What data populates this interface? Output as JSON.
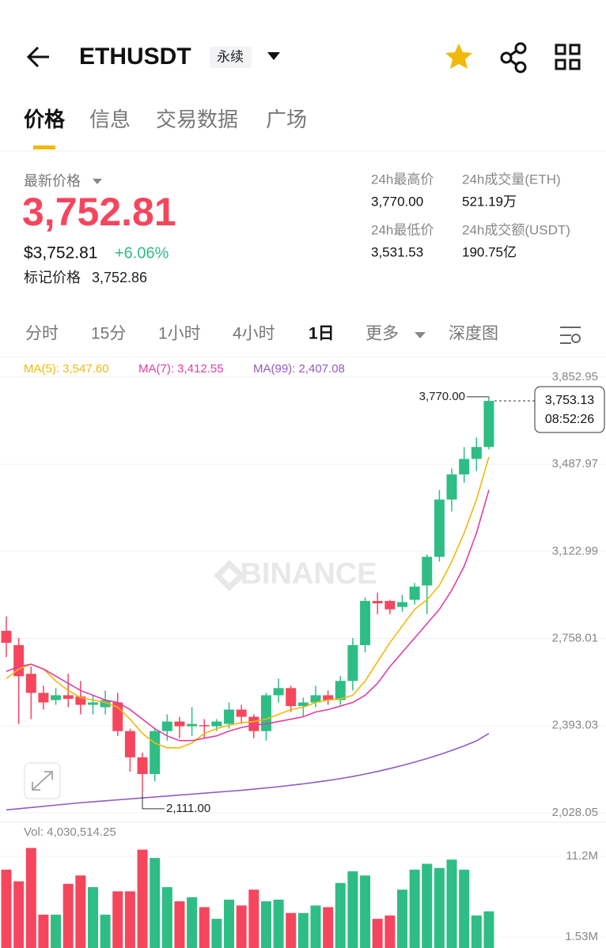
{
  "header": {
    "title": "ETHUSDT",
    "tag": "永续"
  },
  "tabs": [
    "价格",
    "信息",
    "交易数据",
    "广场"
  ],
  "price": {
    "label": "最新价格",
    "last": "3,752.81",
    "usd": "$3,752.81",
    "change": "+6.06%",
    "mark_label": "标记价格",
    "mark_value": "3,752.86"
  },
  "stats": [
    {
      "label": "24h最高价",
      "value": "3,770.00"
    },
    {
      "label": "24h成交量(ETH)",
      "value": "521.19万"
    },
    {
      "label": "24h最低价",
      "value": "3,531.53"
    },
    {
      "label": "24h成交额(USDT)",
      "value": "190.75亿"
    }
  ],
  "intervals": [
    "分时",
    "15分",
    "1小时",
    "4小时",
    "1日",
    "更多",
    "深度图"
  ],
  "chart_data": {
    "type": "candlestick",
    "watermark": "BINANCE",
    "ylim": [
      1988,
      3932
    ],
    "yticks": [
      {
        "value": 3852.95,
        "label": "3,852.95"
      },
      {
        "value": 3487.97,
        "label": "3,487.97"
      },
      {
        "value": 3122.99,
        "label": "3,122.99"
      },
      {
        "value": 2758.01,
        "label": "2,758.01"
      },
      {
        "value": 2393.03,
        "label": "2,393.03"
      },
      {
        "value": 2028.05,
        "label": "2,028.05"
      }
    ],
    "open": [
      2790,
      2730,
      2610,
      2530,
      2500,
      2520,
      2515,
      2480,
      2470,
      2490,
      2370,
      2260,
      2190,
      2370,
      2410,
      2390,
      2395,
      2390,
      2400,
      2460,
      2430,
      2370,
      2520,
      2550,
      2475,
      2490,
      2520,
      2500,
      2580,
      2730,
      2915,
      2915,
      2890,
      2920,
      2980,
      3100,
      3340,
      3445,
      3510,
      3560
    ],
    "high": [
      2850,
      2760,
      2640,
      2560,
      2550,
      2610,
      2580,
      2520,
      2540,
      2530,
      2380,
      2280,
      2380,
      2440,
      2430,
      2470,
      2420,
      2420,
      2490,
      2480,
      2440,
      2530,
      2590,
      2560,
      2510,
      2560,
      2540,
      2600,
      2760,
      2930,
      2950,
      2920,
      2940,
      2990,
      3110,
      3380,
      3470,
      3560,
      3600,
      3770
    ],
    "low": [
      2680,
      2400,
      2420,
      2460,
      2480,
      2470,
      2440,
      2440,
      2440,
      2350,
      2200,
      2111,
      2160,
      2330,
      2340,
      2350,
      2340,
      2370,
      2380,
      2400,
      2340,
      2330,
      2490,
      2450,
      2430,
      2470,
      2480,
      2480,
      2540,
      2700,
      2860,
      2860,
      2870,
      2900,
      2860,
      3080,
      3290,
      3410,
      3460,
      3550
    ],
    "close": [
      2740,
      2600,
      2530,
      2490,
      2520,
      2505,
      2480,
      2490,
      2500,
      2370,
      2260,
      2190,
      2370,
      2410,
      2390,
      2400,
      2390,
      2410,
      2460,
      2430,
      2370,
      2520,
      2550,
      2475,
      2490,
      2520,
      2500,
      2580,
      2730,
      2915,
      2905,
      2880,
      2910,
      2975,
      3100,
      3340,
      3445,
      3510,
      3560,
      3753
    ],
    "series": [
      {
        "name": "MA(5): 3,547.60",
        "color": "#f0b90b",
        "values": [
          2590,
          2630,
          2650,
          2630,
          2580,
          2540,
          2510,
          2500,
          2490,
          2470,
          2420,
          2360,
          2320,
          2300,
          2300,
          2320,
          2360,
          2380,
          2395,
          2405,
          2410,
          2420,
          2440,
          2460,
          2470,
          2490,
          2500,
          2505,
          2520,
          2580,
          2660,
          2740,
          2810,
          2880,
          2920,
          2980,
          3080,
          3200,
          3340,
          3518
        ]
      },
      {
        "name": "MA(7): 3,412.55",
        "color": "#e23fa3",
        "values": [
          2620,
          2640,
          2650,
          2630,
          2600,
          2570,
          2540,
          2520,
          2500,
          2490,
          2460,
          2420,
          2380,
          2350,
          2330,
          2330,
          2340,
          2350,
          2370,
          2385,
          2395,
          2400,
          2410,
          2420,
          2430,
          2450,
          2460,
          2475,
          2490,
          2520,
          2570,
          2640,
          2700,
          2760,
          2820,
          2880,
          2960,
          3060,
          3200,
          3380
        ]
      },
      {
        "name": "MA(99): 2,407.08",
        "color": "#8e5cc4",
        "values": [
          2040,
          2045,
          2050,
          2055,
          2060,
          2065,
          2070,
          2074,
          2078,
          2082,
          2086,
          2090,
          2094,
          2098,
          2102,
          2106,
          2110,
          2114,
          2118,
          2122,
          2127,
          2132,
          2137,
          2143,
          2149,
          2156,
          2163,
          2171,
          2180,
          2190,
          2201,
          2213,
          2226,
          2240,
          2255,
          2271,
          2289,
          2308,
          2329,
          2360
        ]
      }
    ],
    "high_marker": {
      "value": 3770,
      "label": "3,770.00"
    },
    "low_marker": {
      "value": 2111,
      "label": "2,111.00"
    },
    "last_price": {
      "value": 3753.13,
      "label": "3,753.13",
      "time": "08:52:26"
    },
    "vol_label": "Vol: 4,030,514.25",
    "vlim": [
      200000,
      15280000
    ],
    "vticks": [
      {
        "value": 11200000,
        "label": "11.2M"
      },
      {
        "value": 1530000,
        "label": "1.53M"
      }
    ],
    "volume": [
      9600000,
      8200000,
      12200000,
      4200000,
      4200000,
      7900000,
      8900000,
      7500000,
      4200000,
      7000000,
      7000000,
      12000000,
      11000000,
      7500000,
      5800000,
      6300000,
      5100000,
      3700000,
      6000000,
      5300000,
      7200000,
      5800000,
      6000000,
      4400000,
      4400000,
      5300000,
      5100000,
      8000000,
      9400000,
      8900000,
      3700000,
      4100000,
      7200000,
      9600000,
      10300000,
      9800000,
      10800000,
      9600000,
      4100000,
      4600000
    ]
  }
}
